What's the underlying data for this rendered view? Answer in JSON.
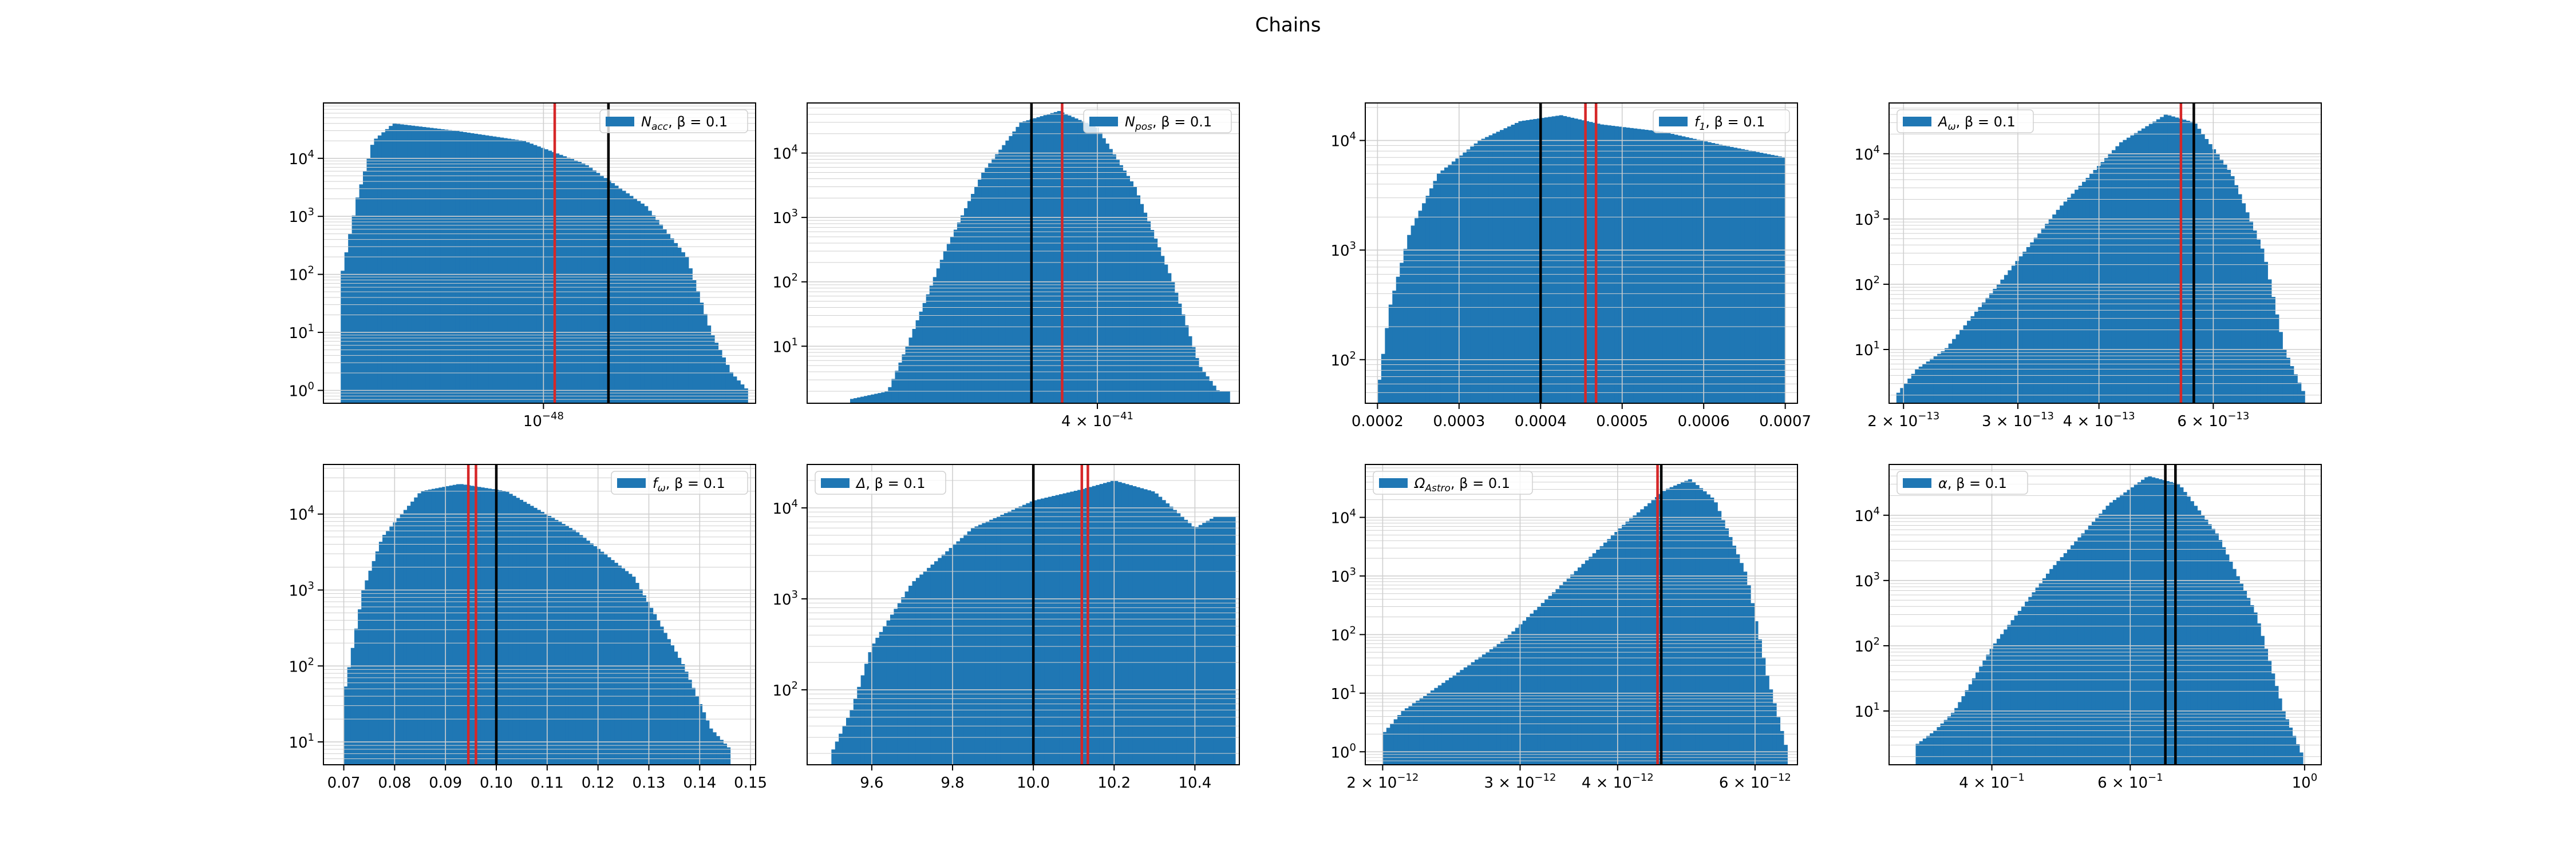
{
  "figure": {
    "title": "Chains"
  },
  "colors": {
    "bars": "#1f77b4",
    "truth": "#000000",
    "estimate": "#d62728",
    "grid": "#cfcfcf"
  },
  "chart_data": [
    {
      "type": "bar",
      "title": "",
      "legend": {
        "label": "N_acc, β = 0.1",
        "math": {
          "sym": "N",
          "sub": "acc",
          "rest": ", β = 0.1"
        },
        "position": "top-right"
      },
      "xscale": "log",
      "yscale": "log",
      "xlim": [
        3.2e-49,
        3e-48
      ],
      "ylim": [
        0.6,
        90000
      ],
      "xticks": [
        {
          "value": 1e-48,
          "label": "10",
          "sup": "−48"
        }
      ],
      "yticks": [
        {
          "value": 1,
          "label": "10",
          "sup": "0"
        },
        {
          "value": 10,
          "label": "10",
          "sup": "1"
        },
        {
          "value": 100,
          "label": "10",
          "sup": "2"
        },
        {
          "value": 1000,
          "label": "10",
          "sup": "3"
        },
        {
          "value": 10000,
          "label": "10",
          "sup": "4"
        }
      ],
      "grid": true,
      "hist": {
        "range": [
          3.5e-49,
          2.88e-48
        ],
        "curve": [
          [
            0,
            80
          ],
          [
            0.04,
            2000
          ],
          [
            0.08,
            20000
          ],
          [
            0.13,
            40000
          ],
          [
            0.28,
            30000
          ],
          [
            0.45,
            20000
          ],
          [
            0.6,
            8000
          ],
          [
            0.75,
            1500
          ],
          [
            0.85,
            200
          ],
          [
            0.91,
            10
          ],
          [
            0.96,
            2
          ],
          [
            1.0,
            1
          ]
        ]
      },
      "vlines": [
        {
          "x": 1.06e-48,
          "color": "#d62728"
        },
        {
          "x": 1.4e-48,
          "color": "#000000"
        }
      ]
    },
    {
      "type": "bar",
      "title": "",
      "legend": {
        "label": "N_pos, β = 0.1",
        "math": {
          "sym": "N",
          "sub": "pos",
          "rest": ", β = 0.1"
        },
        "position": "top-right"
      },
      "xscale": "log",
      "yscale": "log",
      "xlim": [
        2.25e-41,
        5.3e-41
      ],
      "ylim": [
        1.3,
        60000
      ],
      "xticks": [
        {
          "value": 4e-41,
          "label": "4 × 10",
          "sup": "−41"
        }
      ],
      "yticks": [
        {
          "value": 10,
          "label": "10",
          "sup": "1"
        },
        {
          "value": 100,
          "label": "10",
          "sup": "2"
        },
        {
          "value": 1000,
          "label": "10",
          "sup": "3"
        },
        {
          "value": 10000,
          "label": "10",
          "sup": "4"
        }
      ],
      "grid": true,
      "hist": {
        "range": [
          2.45e-41,
          5.2e-41
        ],
        "curve": [
          [
            0,
            1.5
          ],
          [
            0.1,
            2
          ],
          [
            0.15,
            10
          ],
          [
            0.25,
            300
          ],
          [
            0.35,
            5000
          ],
          [
            0.45,
            30000
          ],
          [
            0.55,
            45000
          ],
          [
            0.65,
            25000
          ],
          [
            0.75,
            3000
          ],
          [
            0.85,
            100
          ],
          [
            0.92,
            5
          ],
          [
            0.97,
            2
          ],
          [
            1.0,
            2
          ]
        ]
      },
      "vlines": [
        {
          "x": 3.51e-41,
          "color": "#000000"
        },
        {
          "x": 3.73e-41,
          "color": "#d62728"
        }
      ]
    },
    {
      "type": "bar",
      "title": "",
      "legend": {
        "label": "f_1, β = 0.1",
        "math": {
          "sym": "f",
          "sub": "1",
          "rest": ", β = 0.1"
        },
        "position": "top-right"
      },
      "xscale": "linear",
      "yscale": "log",
      "xlim": [
        0.000185,
        0.000715
      ],
      "ylim": [
        40,
        22000
      ],
      "xticks": [
        {
          "value": 0.0002,
          "label": "0.0002"
        },
        {
          "value": 0.0003,
          "label": "0.0003"
        },
        {
          "value": 0.0004,
          "label": "0.0004"
        },
        {
          "value": 0.0005,
          "label": "0.0005"
        },
        {
          "value": 0.0006,
          "label": "0.0006"
        },
        {
          "value": 0.0007,
          "label": "0.0007"
        }
      ],
      "yticks": [
        {
          "value": 100,
          "label": "10",
          "sup": "2"
        },
        {
          "value": 1000,
          "label": "10",
          "sup": "3"
        },
        {
          "value": 10000,
          "label": "10",
          "sup": "4"
        }
      ],
      "grid": true,
      "hist": {
        "range": [
          0.0002,
          0.0007
        ],
        "curve": [
          [
            0,
            50
          ],
          [
            0.03,
            300
          ],
          [
            0.08,
            1500
          ],
          [
            0.15,
            5000
          ],
          [
            0.25,
            10000
          ],
          [
            0.35,
            15000
          ],
          [
            0.45,
            17000
          ],
          [
            0.55,
            14000
          ],
          [
            0.7,
            12000
          ],
          [
            0.85,
            9000
          ],
          [
            1.0,
            7000
          ]
        ]
      },
      "vlines": [
        {
          "x": 0.0004,
          "color": "#000000"
        },
        {
          "x": 0.000455,
          "color": "#d62728"
        },
        {
          "x": 0.000468,
          "color": "#d62728"
        }
      ]
    },
    {
      "type": "bar",
      "title": "",
      "legend": {
        "label": "A_ω, β = 0.1",
        "math": {
          "sym": "A",
          "sub": "ω",
          "rest": ", β = 0.1"
        },
        "position": "top-left"
      },
      "xscale": "log",
      "yscale": "log",
      "xlim": [
        1.9e-13,
        8.8e-13
      ],
      "ylim": [
        1.5,
        60000
      ],
      "xticks": [
        {
          "value": 2e-13,
          "label": "2 × 10",
          "sup": "−13"
        },
        {
          "value": 3e-13,
          "label": "3 × 10",
          "sup": "−13"
        },
        {
          "value": 4e-13,
          "label": "4 × 10",
          "sup": "−13"
        },
        {
          "value": 6e-13,
          "label": "6 × 10",
          "sup": "−13"
        }
      ],
      "yticks": [
        {
          "value": 10,
          "label": "10",
          "sup": "1"
        },
        {
          "value": 100,
          "label": "10",
          "sup": "2"
        },
        {
          "value": 1000,
          "label": "10",
          "sup": "3"
        },
        {
          "value": 10000,
          "label": "10",
          "sup": "4"
        }
      ],
      "grid": true,
      "hist": {
        "range": [
          1.95e-13,
          8.3e-13
        ],
        "curve": [
          [
            0,
            2
          ],
          [
            0.05,
            5
          ],
          [
            0.12,
            10
          ],
          [
            0.25,
            100
          ],
          [
            0.4,
            1500
          ],
          [
            0.55,
            15000
          ],
          [
            0.66,
            40000
          ],
          [
            0.73,
            30000
          ],
          [
            0.82,
            5000
          ],
          [
            0.9,
            300
          ],
          [
            0.95,
            10
          ],
          [
            1.0,
            2
          ]
        ]
      },
      "vlines": [
        {
          "x": 5.35e-13,
          "color": "#d62728"
        },
        {
          "x": 5.6e-13,
          "color": "#000000"
        }
      ]
    },
    {
      "type": "bar",
      "title": "",
      "legend": {
        "label": "f_ω, β = 0.1",
        "math": {
          "sym": "f",
          "sub": "ω",
          "rest": ", β = 0.1"
        },
        "position": "top-right"
      },
      "xscale": "linear",
      "yscale": "log",
      "xlim": [
        0.066,
        0.151
      ],
      "ylim": [
        5,
        45000
      ],
      "xticks": [
        {
          "value": 0.07,
          "label": "0.07"
        },
        {
          "value": 0.08,
          "label": "0.08"
        },
        {
          "value": 0.09,
          "label": "0.09"
        },
        {
          "value": 0.1,
          "label": "0.10"
        },
        {
          "value": 0.11,
          "label": "0.11"
        },
        {
          "value": 0.12,
          "label": "0.12"
        },
        {
          "value": 0.13,
          "label": "0.13"
        },
        {
          "value": 0.14,
          "label": "0.14"
        },
        {
          "value": 0.15,
          "label": "0.15"
        }
      ],
      "yticks": [
        {
          "value": 10,
          "label": "10",
          "sup": "1"
        },
        {
          "value": 100,
          "label": "10",
          "sup": "2"
        },
        {
          "value": 1000,
          "label": "10",
          "sup": "3"
        },
        {
          "value": 10000,
          "label": "10",
          "sup": "4"
        }
      ],
      "grid": true,
      "hist": {
        "range": [
          0.07,
          0.146
        ],
        "curve": [
          [
            0,
            40
          ],
          [
            0.05,
            1000
          ],
          [
            0.1,
            5000
          ],
          [
            0.2,
            20000
          ],
          [
            0.3,
            25000
          ],
          [
            0.42,
            20000
          ],
          [
            0.6,
            6000
          ],
          [
            0.75,
            1500
          ],
          [
            0.88,
            100
          ],
          [
            0.95,
            15
          ],
          [
            1.0,
            8
          ]
        ]
      },
      "vlines": [
        {
          "x": 0.0945,
          "color": "#d62728"
        },
        {
          "x": 0.096,
          "color": "#d62728"
        },
        {
          "x": 0.1,
          "color": "#000000"
        }
      ]
    },
    {
      "type": "bar",
      "title": "",
      "legend": {
        "label": "Δ, β = 0.1",
        "math": {
          "sym": "Δ",
          "sub": "",
          "rest": ", β = 0.1"
        },
        "position": "top-left"
      },
      "xscale": "linear",
      "yscale": "log",
      "xlim": [
        9.44,
        10.51
      ],
      "ylim": [
        15,
        30000
      ],
      "xticks": [
        {
          "value": 9.6,
          "label": "9.6"
        },
        {
          "value": 9.8,
          "label": "9.8"
        },
        {
          "value": 10,
          "label": "10.0"
        },
        {
          "value": 10.2,
          "label": "10.2"
        },
        {
          "value": 10.4,
          "label": "10.4"
        }
      ],
      "yticks": [
        {
          "value": 100,
          "label": "10",
          "sup": "2"
        },
        {
          "value": 1000,
          "label": "10",
          "sup": "3"
        },
        {
          "value": 10000,
          "label": "10",
          "sup": "4"
        }
      ],
      "grid": true,
      "hist": {
        "range": [
          9.5,
          10.5
        ],
        "curve": [
          [
            0,
            20
          ],
          [
            0.05,
            60
          ],
          [
            0.1,
            300
          ],
          [
            0.2,
            1500
          ],
          [
            0.35,
            6000
          ],
          [
            0.5,
            12000
          ],
          [
            0.62,
            16000
          ],
          [
            0.7,
            20000
          ],
          [
            0.8,
            15000
          ],
          [
            0.9,
            6000
          ],
          [
            0.95,
            8000
          ],
          [
            1.0,
            8000
          ]
        ]
      },
      "vlines": [
        {
          "x": 10.0,
          "color": "#000000"
        },
        {
          "x": 10.12,
          "color": "#d62728"
        },
        {
          "x": 10.135,
          "color": "#d62728"
        }
      ]
    },
    {
      "type": "bar",
      "title": "",
      "legend": {
        "label": "Ω_Astro, β = 0.1",
        "math": {
          "sym": "Ω",
          "sub": "Astro",
          "rest": ", β = 0.1"
        },
        "position": "top-left"
      },
      "xscale": "log",
      "yscale": "log",
      "xlim": [
        1.9e-12,
        6.8e-12
      ],
      "ylim": [
        0.6,
        80000
      ],
      "xticks": [
        {
          "value": 2e-12,
          "label": "2 × 10",
          "sup": "−12"
        },
        {
          "value": 3e-12,
          "label": "3 × 10",
          "sup": "−12"
        },
        {
          "value": 4e-12,
          "label": "4 × 10",
          "sup": "−12"
        },
        {
          "value": 6e-12,
          "label": "6 × 10",
          "sup": "−12"
        }
      ],
      "yticks": [
        {
          "value": 1,
          "label": "10",
          "sup": "0"
        },
        {
          "value": 10,
          "label": "10",
          "sup": "1"
        },
        {
          "value": 100,
          "label": "10",
          "sup": "2"
        },
        {
          "value": 1000,
          "label": "10",
          "sup": "3"
        },
        {
          "value": 10000,
          "label": "10",
          "sup": "4"
        }
      ],
      "grid": true,
      "hist": {
        "range": [
          2e-12,
          6.6e-12
        ],
        "curve": [
          [
            0,
            2
          ],
          [
            0.05,
            5
          ],
          [
            0.15,
            15
          ],
          [
            0.3,
            80
          ],
          [
            0.45,
            800
          ],
          [
            0.6,
            8000
          ],
          [
            0.7,
            30000
          ],
          [
            0.76,
            45000
          ],
          [
            0.82,
            20000
          ],
          [
            0.9,
            1000
          ],
          [
            0.95,
            20
          ],
          [
            1.0,
            1
          ]
        ]
      },
      "vlines": [
        {
          "x": 4.5e-12,
          "color": "#d62728"
        },
        {
          "x": 4.55e-12,
          "color": "#000000"
        }
      ]
    },
    {
      "type": "bar",
      "title": "",
      "legend": {
        "label": "α, β = 0.1",
        "math": {
          "sym": "α",
          "sub": "",
          "rest": ", β = 0.1"
        },
        "position": "top-left"
      },
      "xscale": "log",
      "yscale": "log",
      "xlim": [
        0.296,
        1.05
      ],
      "ylim": [
        1.5,
        60000
      ],
      "xticks": [
        {
          "value": 0.4,
          "label": "4 × 10",
          "sup": "−1"
        },
        {
          "value": 0.6,
          "label": "6 × 10",
          "sup": "−1"
        },
        {
          "value": 1,
          "label": "10",
          "sup": "0"
        }
      ],
      "yticks": [
        {
          "value": 10,
          "label": "10",
          "sup": "1"
        },
        {
          "value": 100,
          "label": "10",
          "sup": "2"
        },
        {
          "value": 1000,
          "label": "10",
          "sup": "3"
        },
        {
          "value": 10000,
          "label": "10",
          "sup": "4"
        }
      ],
      "grid": true,
      "hist": {
        "range": [
          0.32,
          0.995
        ],
        "curve": [
          [
            0,
            3
          ],
          [
            0.05,
            5
          ],
          [
            0.1,
            10
          ],
          [
            0.2,
            100
          ],
          [
            0.35,
            1500
          ],
          [
            0.5,
            15000
          ],
          [
            0.6,
            40000
          ],
          [
            0.68,
            30000
          ],
          [
            0.78,
            5000
          ],
          [
            0.88,
            300
          ],
          [
            0.95,
            10
          ],
          [
            1.0,
            2
          ]
        ]
      },
      "vlines": [
        {
          "x": 0.665,
          "color": "#000000"
        },
        {
          "x": 0.685,
          "color": "#000000"
        }
      ]
    }
  ]
}
